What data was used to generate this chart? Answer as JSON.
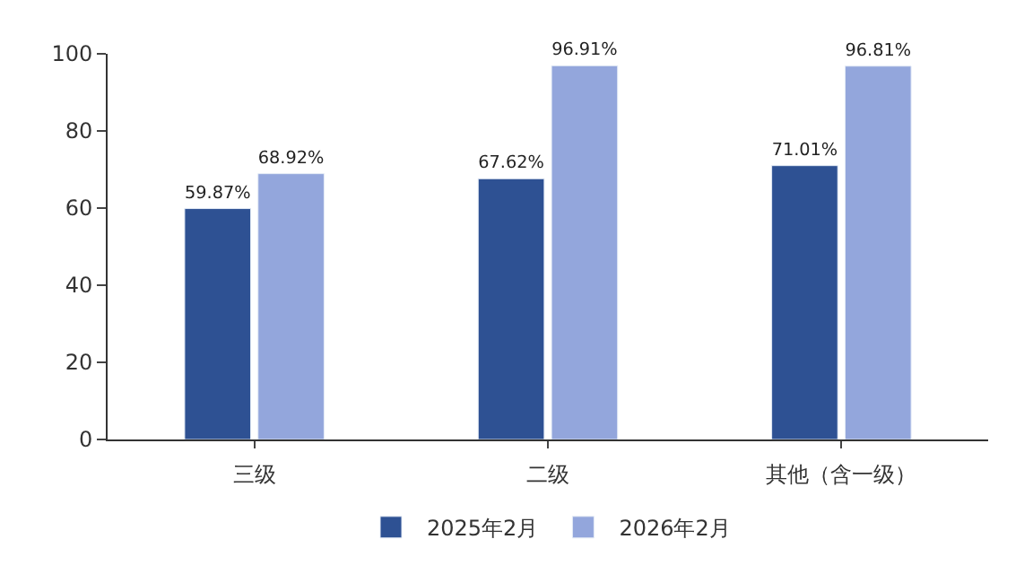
{
  "chart_data": {
    "type": "bar",
    "categories": [
      "三级",
      "二级",
      "其他（含一级）"
    ],
    "series": [
      {
        "name": "2025年2月",
        "color": "#2e5193",
        "values": [
          59.87,
          67.62,
          71.01
        ],
        "value_labels": [
          "59.87%",
          "67.62%",
          "71.01%"
        ]
      },
      {
        "name": "2026年2月",
        "color": "#93a6dc",
        "values": [
          68.92,
          96.91,
          96.81
        ],
        "value_labels": [
          "68.92%",
          "96.91%",
          "96.81%"
        ]
      }
    ],
    "ylim": [
      0,
      100
    ],
    "yticks": [
      0,
      20,
      40,
      60,
      80,
      100
    ],
    "legend": "bottom"
  }
}
